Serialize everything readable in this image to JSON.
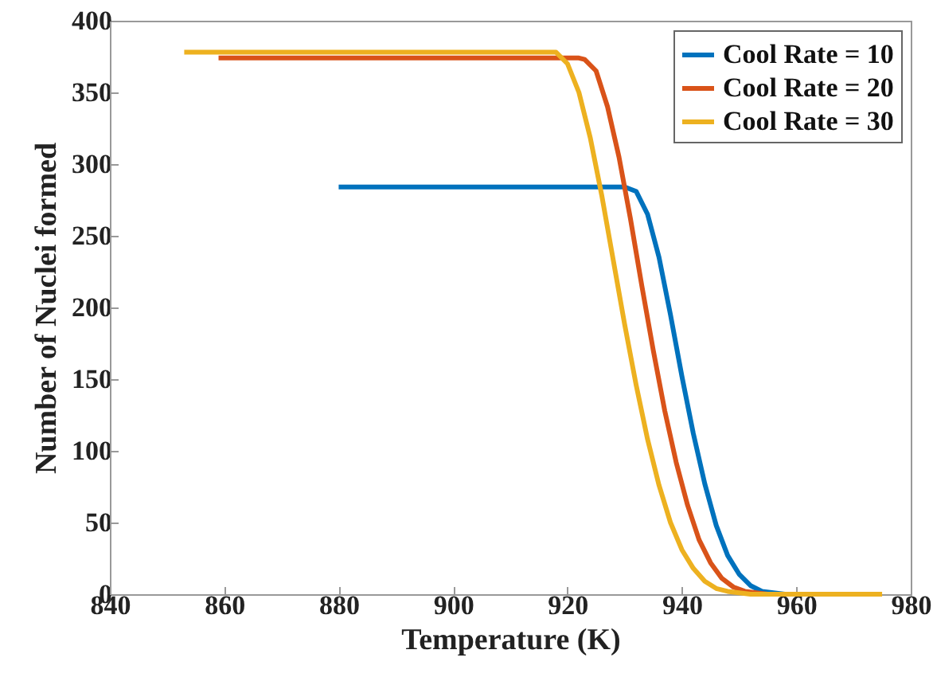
{
  "chart_data": {
    "type": "line",
    "xlabel": "Temperature (K)",
    "ylabel": "Number of Nuclei formed",
    "xlim": [
      840,
      980
    ],
    "xticks": [
      840,
      860,
      880,
      900,
      920,
      940,
      960,
      980
    ],
    "ylim": [
      0,
      400
    ],
    "yticks": [
      0,
      50,
      100,
      150,
      200,
      250,
      300,
      350,
      400
    ],
    "grid": false,
    "legend": "top right",
    "line_style": "solid",
    "marker": "none",
    "series": [
      {
        "name": "Cool Rate = 10",
        "color": "#0072bd",
        "x": [
          880,
          930,
          932,
          934,
          936,
          938,
          940,
          942,
          944,
          946,
          948,
          950,
          952,
          954,
          956,
          958
        ],
        "values": [
          284,
          284,
          281,
          265,
          235,
          195,
          152,
          112,
          77,
          48,
          27,
          14,
          6,
          2,
          1,
          0
        ]
      },
      {
        "name": "Cool Rate = 20",
        "color": "#d95319",
        "x": [
          859,
          922,
          923,
          925,
          927,
          929,
          931,
          933,
          935,
          937,
          939,
          941,
          943,
          945,
          947,
          949,
          951,
          953,
          955
        ],
        "values": [
          374,
          374,
          373,
          365,
          340,
          305,
          262,
          215,
          170,
          128,
          92,
          62,
          38,
          22,
          11,
          5,
          2,
          1,
          0
        ]
      },
      {
        "name": "Cool Rate = 30",
        "color": "#edb120",
        "x": [
          853,
          918,
          920,
          922,
          924,
          926,
          928,
          930,
          932,
          934,
          936,
          938,
          940,
          942,
          944,
          946,
          948,
          950,
          952,
          975
        ],
        "values": [
          378,
          378,
          370,
          350,
          318,
          278,
          233,
          188,
          146,
          108,
          76,
          50,
          31,
          18,
          9,
          4,
          2,
          1,
          0,
          0
        ]
      }
    ]
  }
}
